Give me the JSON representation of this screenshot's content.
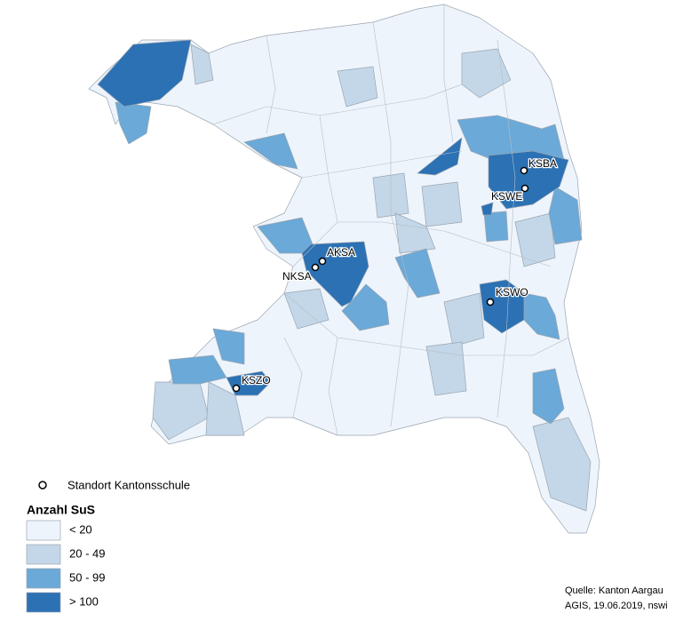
{
  "map": {
    "schools": [
      {
        "label": "KSBA"
      },
      {
        "label": "KSWE"
      },
      {
        "label": "AKSA"
      },
      {
        "label": "NKSA"
      },
      {
        "label": "KSWO"
      },
      {
        "label": "KSZO"
      }
    ],
    "legend": {
      "marker_label": "Standort Kantonsschule",
      "title": "Anzahl SuS",
      "classes": [
        {
          "label": "< 20",
          "color": "#eef4fb"
        },
        {
          "label": "20 - 49",
          "color": "#c3d7e8"
        },
        {
          "label": "50 - 99",
          "color": "#6aa9d8"
        },
        {
          "label": "> 100",
          "color": "#2b71b4"
        }
      ]
    },
    "source": [
      "Quelle: Kanton Aargau",
      "AGIS, 19.06.2019, nswi"
    ]
  }
}
